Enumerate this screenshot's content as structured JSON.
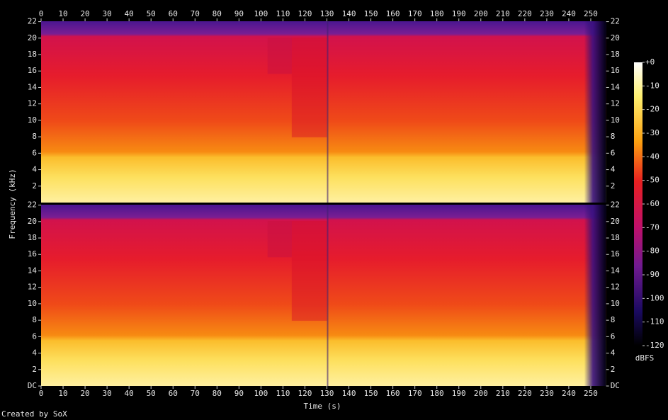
{
  "chart_data": {
    "type": "spectrogram",
    "x_label": "Time (s)",
    "y_label": "Frequency (kHz)",
    "xlim": [
      0,
      257
    ],
    "xticks": [
      0,
      10,
      20,
      30,
      40,
      50,
      60,
      70,
      80,
      90,
      100,
      110,
      120,
      130,
      140,
      150,
      160,
      170,
      180,
      190,
      200,
      210,
      220,
      230,
      240,
      250
    ],
    "channels": [
      {
        "ylim": [
          0,
          22.05
        ],
        "yticks": [
          2,
          4,
          6,
          8,
          10,
          12,
          14,
          16,
          18,
          20,
          22
        ]
      },
      {
        "ylim": [
          0,
          22.05
        ],
        "yticks": [
          {
            "value": 0,
            "label": "DC"
          },
          2,
          4,
          6,
          8,
          10,
          12,
          14,
          16,
          18,
          20,
          22
        ]
      }
    ],
    "colorbar": {
      "label": "dBFS",
      "lim": [
        -120,
        0
      ],
      "ticks": [
        {
          "value": 0,
          "label": "+0"
        },
        -10,
        -20,
        -30,
        -40,
        -50,
        -60,
        -70,
        -80,
        -90,
        -100,
        -110,
        -120
      ]
    },
    "footer": "Created by SoX"
  }
}
